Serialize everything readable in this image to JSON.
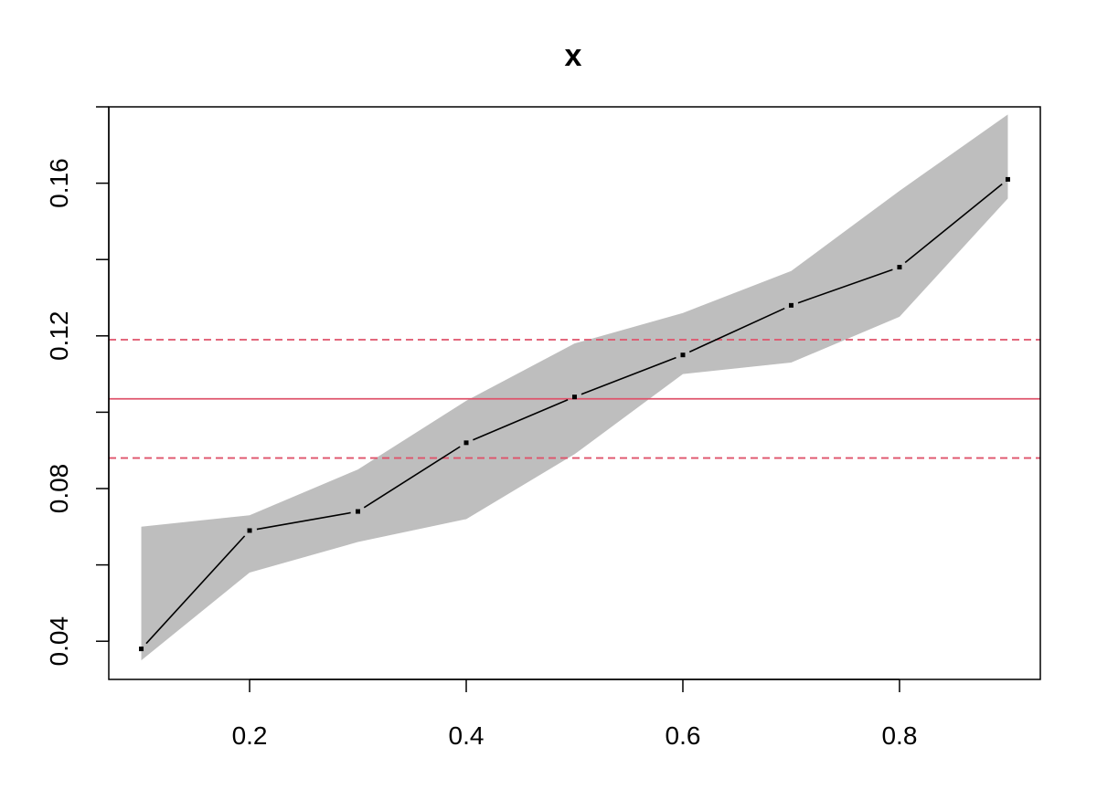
{
  "chart_data": {
    "type": "line",
    "title": "x",
    "xlabel": "",
    "ylabel": "",
    "xlim": [
      0.07,
      0.93
    ],
    "ylim": [
      0.03,
      0.18
    ],
    "x_ticks": [
      0.2,
      0.4,
      0.6,
      0.8
    ],
    "x_tick_labels": [
      "0.2",
      "0.4",
      "0.6",
      "0.8"
    ],
    "y_ticks": [
      0.04,
      0.06,
      0.08,
      0.1,
      0.12,
      0.14,
      0.16,
      0.18
    ],
    "y_tick_labels": [
      "0.04",
      "",
      "0.08",
      "",
      "0.12",
      "",
      "0.16",
      ""
    ],
    "grid": false,
    "x": [
      0.1,
      0.2,
      0.3,
      0.4,
      0.5,
      0.6,
      0.7,
      0.8,
      0.9
    ],
    "series": [
      {
        "values": [
          0.038,
          0.069,
          0.074,
          0.092,
          0.104,
          0.115,
          0.128,
          0.138,
          0.161
        ],
        "color": "#000000",
        "marker": "point"
      }
    ],
    "band": {
      "lower": [
        0.035,
        0.058,
        0.066,
        0.072,
        0.089,
        0.11,
        0.113,
        0.125,
        0.156
      ],
      "upper": [
        0.07,
        0.073,
        0.085,
        0.103,
        0.118,
        0.126,
        0.137,
        0.158,
        0.178
      ],
      "color": "#bebebe"
    },
    "hlines": [
      {
        "y": 0.1035,
        "style": "solid",
        "color": "#df536b"
      },
      {
        "y": 0.119,
        "style": "dashed",
        "color": "#df536b"
      },
      {
        "y": 0.088,
        "style": "dashed",
        "color": "#df536b"
      }
    ]
  }
}
